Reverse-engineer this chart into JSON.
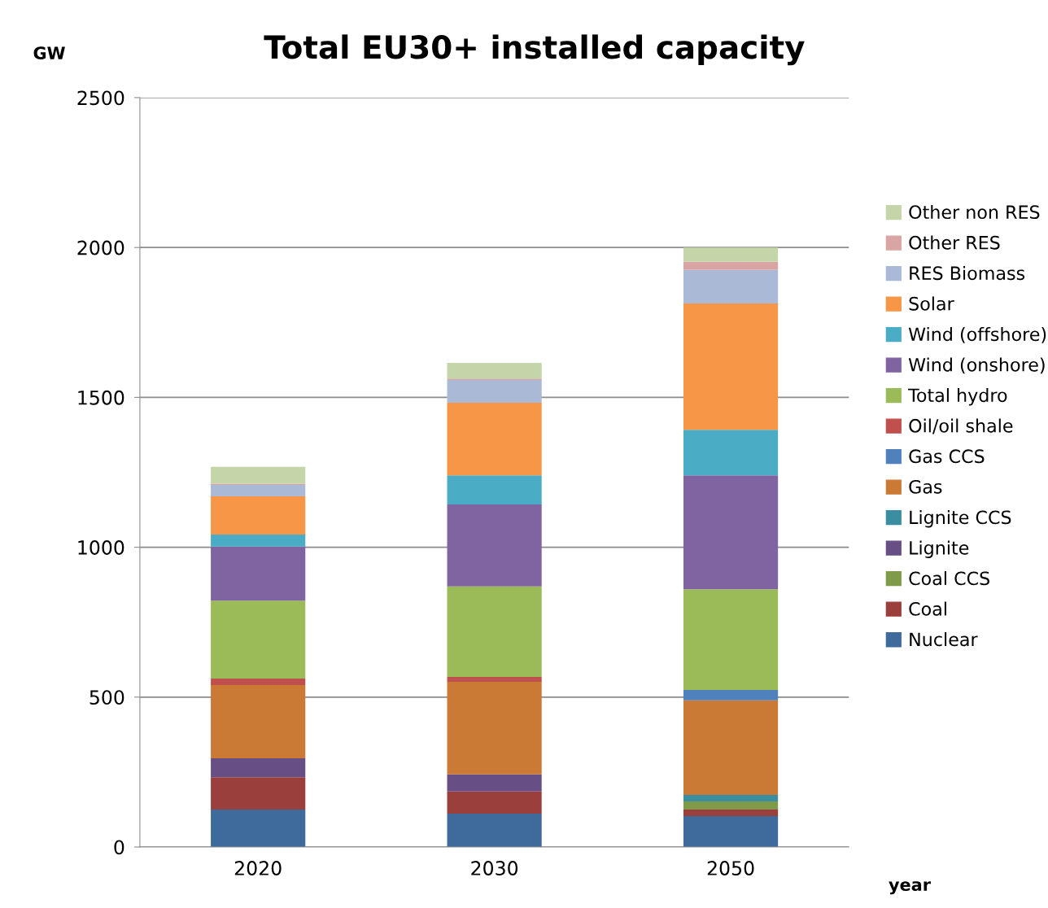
{
  "chart_data": {
    "type": "bar",
    "title": "Total EU30+ installed capacity",
    "xlabel": "year",
    "ylabel": "GW",
    "categories": [
      "2020",
      "2030",
      "2050"
    ],
    "stacked": true,
    "ylim": [
      0,
      2500
    ],
    "yticks": [
      0,
      500,
      1000,
      1500,
      2000,
      2500
    ],
    "grid": "y",
    "legend": "right",
    "series": [
      {
        "name": "Nuclear",
        "color": "#3f6a9c",
        "values": [
          125,
          111,
          103
        ]
      },
      {
        "name": "Coal",
        "color": "#9b3f3d",
        "values": [
          108,
          74,
          22
        ]
      },
      {
        "name": "Coal CCS",
        "color": "#7f9a48",
        "values": [
          0,
          0,
          27
        ]
      },
      {
        "name": "Lignite",
        "color": "#674f86",
        "values": [
          63,
          57,
          0
        ]
      },
      {
        "name": "Lignite CCS",
        "color": "#3b8ea1",
        "values": [
          0,
          0,
          22
        ]
      },
      {
        "name": "Gas",
        "color": "#cb7a36",
        "values": [
          244,
          309,
          315
        ]
      },
      {
        "name": "Gas CCS",
        "color": "#4f81bd",
        "values": [
          0,
          0,
          35
        ]
      },
      {
        "name": "Oil/oil shale",
        "color": "#c0504d",
        "values": [
          22,
          16,
          0
        ]
      },
      {
        "name": "Total hydro",
        "color": "#9bbb59",
        "values": [
          260,
          302,
          336
        ]
      },
      {
        "name": "Wind (onshore)",
        "color": "#8064a2",
        "values": [
          180,
          274,
          380
        ]
      },
      {
        "name": "Wind (offshore)",
        "color": "#4bacc6",
        "values": [
          40,
          97,
          152
        ]
      },
      {
        "name": "Solar",
        "color": "#f79646",
        "values": [
          128,
          242,
          421
        ]
      },
      {
        "name": "RES Biomass",
        "color": "#a9b9d6",
        "values": [
          38,
          76,
          112
        ]
      },
      {
        "name": "Other RES",
        "color": "#d9a5a4",
        "values": [
          3,
          5,
          27
        ]
      },
      {
        "name": "Other non RES",
        "color": "#c4d6a9",
        "values": [
          57,
          52,
          48
        ]
      }
    ]
  }
}
